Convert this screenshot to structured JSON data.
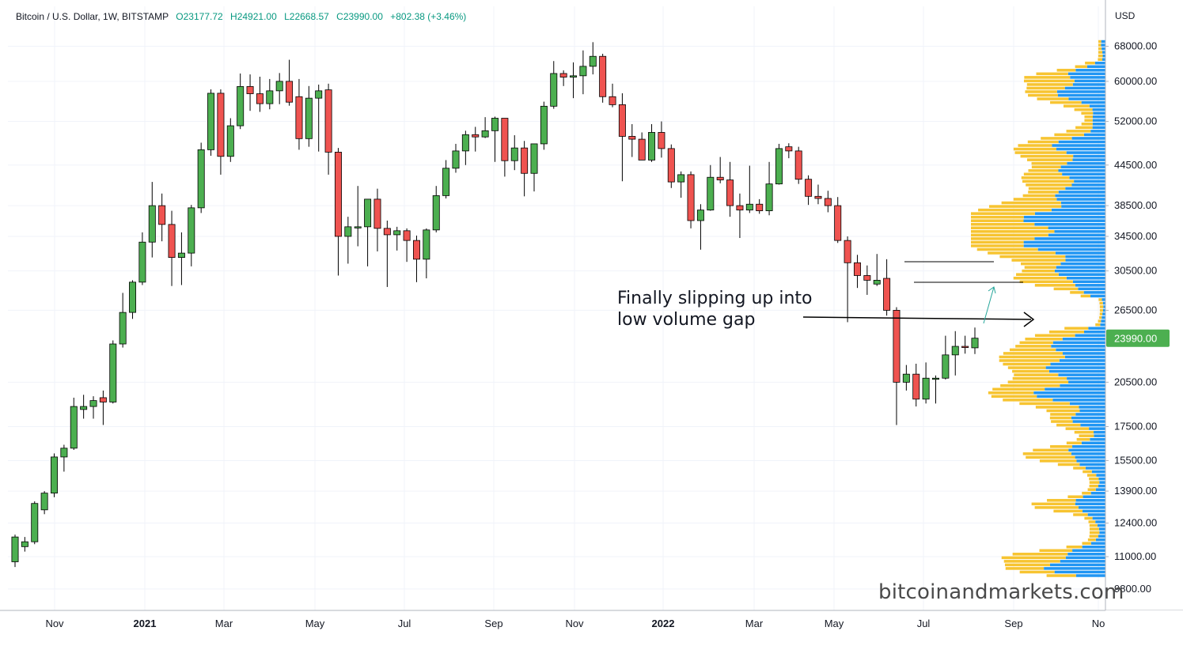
{
  "header": {
    "symbol": "Bitcoin / U.S. Dollar, 1W, BITSTAMP",
    "open": "O23177.72",
    "high": "H24921.00",
    "low": "L22668.57",
    "close": "C23990.00",
    "change": "+802.38 (+3.46%)"
  },
  "currency_label": "USD",
  "watermark": "bitcoinandmarkets.com",
  "annotation": {
    "line1": "Finally slipping up into",
    "line2": "low volume gap"
  },
  "colors": {
    "up": "#4caf50",
    "down": "#ef5350",
    "volume_up": "#f7c431",
    "volume_down": "#2196f3",
    "price_badge": "#4caf50"
  },
  "chart_data": {
    "type": "candlestick",
    "title": "Bitcoin / U.S. Dollar, 1W, BITSTAMP",
    "y_scale": "log",
    "ylim": [
      9000,
      72000
    ],
    "y_ticks": [
      "68000.00",
      "60000.00",
      "52000.00",
      "44500.00",
      "38500.00",
      "34500.00",
      "30500.00",
      "26500.00",
      "20500.00",
      "17500.00",
      "15500.00",
      "13900.00",
      "12400.00",
      "11000.00",
      "9800.00"
    ],
    "x_ticks": [
      "Nov",
      "2021",
      "Mar",
      "May",
      "Jul",
      "Sep",
      "Nov",
      "2022",
      "Mar",
      "May",
      "Jul",
      "Sep",
      "No"
    ],
    "last_price": "23990.00",
    "candles": [
      {
        "o": 10800,
        "h": 11900,
        "l": 10600,
        "c": 11800
      },
      {
        "o": 11400,
        "h": 11800,
        "l": 11200,
        "c": 11600
      },
      {
        "o": 11600,
        "h": 13400,
        "l": 11500,
        "c": 13300
      },
      {
        "o": 13000,
        "h": 13900,
        "l": 12800,
        "c": 13800
      },
      {
        "o": 13800,
        "h": 15900,
        "l": 13600,
        "c": 15700
      },
      {
        "o": 15700,
        "h": 16400,
        "l": 14900,
        "c": 16200
      },
      {
        "o": 16200,
        "h": 19400,
        "l": 16100,
        "c": 18800
      },
      {
        "o": 18600,
        "h": 19600,
        "l": 18000,
        "c": 18800
      },
      {
        "o": 18800,
        "h": 19500,
        "l": 18000,
        "c": 19200
      },
      {
        "o": 19400,
        "h": 19900,
        "l": 17600,
        "c": 19100
      },
      {
        "o": 19100,
        "h": 23800,
        "l": 19000,
        "c": 23500
      },
      {
        "o": 23500,
        "h": 28200,
        "l": 23200,
        "c": 26300
      },
      {
        "o": 26300,
        "h": 29500,
        "l": 25700,
        "c": 29300
      },
      {
        "o": 29300,
        "h": 35000,
        "l": 29000,
        "c": 33800
      },
      {
        "o": 33800,
        "h": 41900,
        "l": 32000,
        "c": 38500
      },
      {
        "o": 38500,
        "h": 40200,
        "l": 33900,
        "c": 36000
      },
      {
        "o": 36000,
        "h": 37800,
        "l": 28900,
        "c": 32000
      },
      {
        "o": 32000,
        "h": 35000,
        "l": 29000,
        "c": 32500
      },
      {
        "o": 32500,
        "h": 38600,
        "l": 31000,
        "c": 38200
      },
      {
        "o": 38200,
        "h": 48200,
        "l": 37500,
        "c": 47000
      },
      {
        "o": 47000,
        "h": 58300,
        "l": 46000,
        "c": 57500
      },
      {
        "o": 57500,
        "h": 58300,
        "l": 43000,
        "c": 45900
      },
      {
        "o": 45900,
        "h": 52600,
        "l": 45000,
        "c": 51200
      },
      {
        "o": 51200,
        "h": 61700,
        "l": 50600,
        "c": 58900
      },
      {
        "o": 58900,
        "h": 61500,
        "l": 54000,
        "c": 57400
      },
      {
        "o": 57400,
        "h": 61000,
        "l": 53800,
        "c": 55400
      },
      {
        "o": 55400,
        "h": 60500,
        "l": 54300,
        "c": 58000
      },
      {
        "o": 58000,
        "h": 61800,
        "l": 55300,
        "c": 60000
      },
      {
        "o": 60000,
        "h": 64800,
        "l": 55000,
        "c": 55700
      },
      {
        "o": 56800,
        "h": 60500,
        "l": 47000,
        "c": 48900
      },
      {
        "o": 48900,
        "h": 59000,
        "l": 47500,
        "c": 56500
      },
      {
        "o": 56500,
        "h": 59300,
        "l": 46700,
        "c": 58000
      },
      {
        "o": 58200,
        "h": 59500,
        "l": 43000,
        "c": 46600
      },
      {
        "o": 46600,
        "h": 47300,
        "l": 30000,
        "c": 34500
      },
      {
        "o": 34500,
        "h": 37000,
        "l": 31300,
        "c": 35700
      },
      {
        "o": 35700,
        "h": 41300,
        "l": 33300,
        "c": 35700
      },
      {
        "o": 35700,
        "h": 39400,
        "l": 31000,
        "c": 39400
      },
      {
        "o": 39400,
        "h": 40900,
        "l": 32700,
        "c": 35500
      },
      {
        "o": 35500,
        "h": 36500,
        "l": 28800,
        "c": 34700
      },
      {
        "o": 34700,
        "h": 35700,
        "l": 32800,
        "c": 35200
      },
      {
        "o": 35200,
        "h": 35500,
        "l": 31500,
        "c": 34000
      },
      {
        "o": 34000,
        "h": 34600,
        "l": 29300,
        "c": 31800
      },
      {
        "o": 31800,
        "h": 35500,
        "l": 29700,
        "c": 35300
      },
      {
        "o": 35300,
        "h": 41300,
        "l": 35000,
        "c": 39900
      },
      {
        "o": 39900,
        "h": 45300,
        "l": 39500,
        "c": 44000
      },
      {
        "o": 44000,
        "h": 48000,
        "l": 43300,
        "c": 46800
      },
      {
        "o": 46800,
        "h": 50300,
        "l": 44500,
        "c": 49600
      },
      {
        "o": 49600,
        "h": 51000,
        "l": 46700,
        "c": 49200
      },
      {
        "o": 49200,
        "h": 52800,
        "l": 49000,
        "c": 50300
      },
      {
        "o": 50300,
        "h": 52900,
        "l": 45000,
        "c": 52600
      },
      {
        "o": 52600,
        "h": 52600,
        "l": 42700,
        "c": 45200
      },
      {
        "o": 45200,
        "h": 49500,
        "l": 43700,
        "c": 47300
      },
      {
        "o": 47300,
        "h": 48500,
        "l": 39800,
        "c": 43200
      },
      {
        "o": 43200,
        "h": 48000,
        "l": 40500,
        "c": 48000
      },
      {
        "o": 48000,
        "h": 55800,
        "l": 47000,
        "c": 54900
      },
      {
        "o": 54900,
        "h": 64500,
        "l": 54400,
        "c": 61700
      },
      {
        "o": 61700,
        "h": 62400,
        "l": 59000,
        "c": 60900
      },
      {
        "o": 60900,
        "h": 64200,
        "l": 56500,
        "c": 61200
      },
      {
        "o": 61200,
        "h": 67000,
        "l": 57300,
        "c": 63300
      },
      {
        "o": 63300,
        "h": 69000,
        "l": 61500,
        "c": 65600
      },
      {
        "o": 65600,
        "h": 66200,
        "l": 55600,
        "c": 56800
      },
      {
        "o": 56800,
        "h": 59500,
        "l": 54700,
        "c": 55200
      },
      {
        "o": 55200,
        "h": 57500,
        "l": 42000,
        "c": 49300
      },
      {
        "o": 49300,
        "h": 51500,
        "l": 45800,
        "c": 48800
      },
      {
        "o": 48800,
        "h": 50000,
        "l": 45700,
        "c": 45300
      },
      {
        "o": 45300,
        "h": 51500,
        "l": 45000,
        "c": 50000
      },
      {
        "o": 50000,
        "h": 52000,
        "l": 45700,
        "c": 47200
      },
      {
        "o": 47200,
        "h": 47900,
        "l": 41000,
        "c": 41900
      },
      {
        "o": 41900,
        "h": 43500,
        "l": 39600,
        "c": 43000
      },
      {
        "o": 43000,
        "h": 43500,
        "l": 35500,
        "c": 36500
      },
      {
        "o": 36500,
        "h": 38700,
        "l": 32900,
        "c": 37900
      },
      {
        "o": 37900,
        "h": 44500,
        "l": 37800,
        "c": 42600
      },
      {
        "o": 42600,
        "h": 45800,
        "l": 41700,
        "c": 42200
      },
      {
        "o": 42200,
        "h": 45000,
        "l": 37000,
        "c": 38500
      },
      {
        "o": 38500,
        "h": 40200,
        "l": 34300,
        "c": 37900
      },
      {
        "o": 37900,
        "h": 44400,
        "l": 37500,
        "c": 38700
      },
      {
        "o": 38700,
        "h": 39400,
        "l": 37400,
        "c": 37800
      },
      {
        "o": 37800,
        "h": 45000,
        "l": 37200,
        "c": 41600
      },
      {
        "o": 41600,
        "h": 48000,
        "l": 41500,
        "c": 47200
      },
      {
        "o": 47500,
        "h": 48100,
        "l": 45600,
        "c": 46800
      },
      {
        "o": 46800,
        "h": 47500,
        "l": 41600,
        "c": 42300
      },
      {
        "o": 42300,
        "h": 42900,
        "l": 38600,
        "c": 39800
      },
      {
        "o": 39800,
        "h": 41500,
        "l": 38700,
        "c": 39500
      },
      {
        "o": 39500,
        "h": 40600,
        "l": 37600,
        "c": 38500
      },
      {
        "o": 38500,
        "h": 39700,
        "l": 33700,
        "c": 34000
      },
      {
        "o": 34000,
        "h": 34500,
        "l": 25400,
        "c": 31400
      },
      {
        "o": 31400,
        "h": 32300,
        "l": 28700,
        "c": 30000
      },
      {
        "o": 30000,
        "h": 31100,
        "l": 28000,
        "c": 29500
      },
      {
        "o": 29100,
        "h": 32400,
        "l": 28900,
        "c": 29500
      },
      {
        "o": 29700,
        "h": 31800,
        "l": 26000,
        "c": 26500
      },
      {
        "o": 26500,
        "h": 26800,
        "l": 17600,
        "c": 20500
      },
      {
        "o": 20500,
        "h": 21800,
        "l": 19900,
        "c": 21100
      },
      {
        "o": 21100,
        "h": 21900,
        "l": 18800,
        "c": 19300
      },
      {
        "o": 19300,
        "h": 22000,
        "l": 19000,
        "c": 20800
      },
      {
        "o": 20800,
        "h": 21000,
        "l": 19000,
        "c": 20800
      },
      {
        "o": 20800,
        "h": 24200,
        "l": 20700,
        "c": 22600
      },
      {
        "o": 22600,
        "h": 24600,
        "l": 21000,
        "c": 23300
      },
      {
        "o": 23300,
        "h": 24200,
        "l": 22700,
        "c": 23200
      },
      {
        "o": 23177.72,
        "h": 24921,
        "l": 22668.57,
        "c": 23990
      }
    ],
    "volume_profile_note": "visible-range volume profile (up volume / down volume) on right side"
  }
}
